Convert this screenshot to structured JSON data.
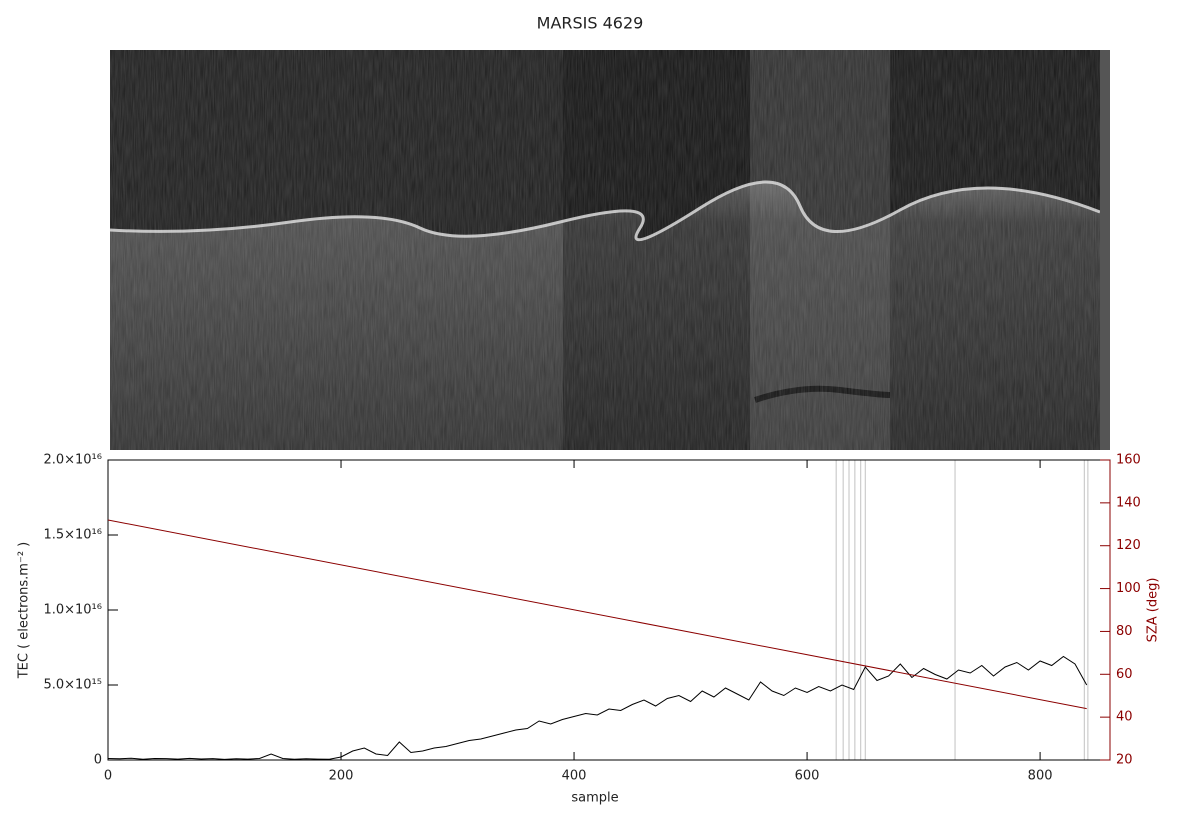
{
  "chart_data": {
    "type": "line",
    "title": "MARSIS 4629",
    "xlabel": "sample",
    "ylabel": "TEC ( electrons.m⁻² )",
    "y2label": "SZA (deg)",
    "xlim": [
      0,
      860
    ],
    "xticks": [
      0,
      200,
      400,
      600,
      800
    ],
    "ylim": [
      0,
      2e+16
    ],
    "yticks": [
      0,
      {
        "value": 5000000000000000.0,
        "label": "5.0×10¹⁵"
      },
      {
        "value": 1e+16,
        "label": "1.0×10¹⁶"
      },
      {
        "value": 1.5e+16,
        "label": "1.5×10¹⁶"
      },
      {
        "value": 2e+16,
        "label": "2.0×10¹⁶"
      }
    ],
    "y2lim": [
      20,
      160
    ],
    "y2ticks": [
      20,
      40,
      60,
      80,
      100,
      120,
      140,
      160
    ],
    "y2color": "#8b0000",
    "flagged_samples": [
      625,
      631,
      636,
      641,
      646,
      650,
      727,
      838,
      841
    ],
    "flag_color": "#cccccc",
    "series": [
      {
        "name": "TEC",
        "color": "#000000",
        "x": [
          0,
          10,
          20,
          30,
          40,
          50,
          60,
          70,
          80,
          90,
          100,
          110,
          120,
          130,
          140,
          150,
          160,
          170,
          180,
          190,
          200,
          210,
          220,
          230,
          240,
          250,
          260,
          270,
          280,
          290,
          300,
          310,
          320,
          330,
          340,
          350,
          360,
          370,
          380,
          390,
          400,
          410,
          420,
          430,
          440,
          450,
          460,
          470,
          480,
          490,
          500,
          510,
          520,
          530,
          540,
          550,
          560,
          570,
          580,
          590,
          600,
          610,
          620,
          630,
          640,
          650,
          660,
          670,
          680,
          690,
          700,
          710,
          720,
          730,
          740,
          750,
          760,
          770,
          780,
          790,
          800,
          810,
          820,
          830,
          840
        ],
        "values": [
          100000000000000.0,
          80000000000000.0,
          120000000000000.0,
          50000000000000.0,
          100000000000000.0,
          90000000000000.0,
          60000000000000.0,
          110000000000000.0,
          70000000000000.0,
          90000000000000.0,
          40000000000000.0,
          80000000000000.0,
          60000000000000.0,
          100000000000000.0,
          400000000000000.0,
          100000000000000.0,
          50000000000000.0,
          80000000000000.0,
          60000000000000.0,
          50000000000000.0,
          200000000000000.0,
          600000000000000.0,
          800000000000000.0,
          400000000000000.0,
          300000000000000.0,
          1200000000000000.0,
          500000000000000.0,
          600000000000000.0,
          800000000000000.0,
          900000000000000.0,
          1100000000000000.0,
          1300000000000000.0,
          1400000000000000.0,
          1600000000000000.0,
          1800000000000000.0,
          2000000000000000.0,
          2100000000000000.0,
          2600000000000000.0,
          2400000000000000.0,
          2700000000000000.0,
          2900000000000000.0,
          3100000000000000.0,
          3000000000000000.0,
          3400000000000000.0,
          3300000000000000.0,
          3700000000000000.0,
          4000000000000000.0,
          3600000000000000.0,
          4100000000000000.0,
          4300000000000000.0,
          3900000000000000.0,
          4600000000000000.0,
          4200000000000000.0,
          4800000000000000.0,
          4400000000000000.0,
          4000000000000000.0,
          5200000000000000.0,
          4600000000000000.0,
          4300000000000000.0,
          4800000000000000.0,
          4500000000000000.0,
          4900000000000000.0,
          4600000000000000.0,
          5000000000000000.0,
          4700000000000000.0,
          6200000000000000.0,
          5300000000000000.0,
          5600000000000000.0,
          6400000000000000.0,
          5500000000000000.0,
          6100000000000000.0,
          5700000000000000.0,
          5400000000000000.0,
          6000000000000000.0,
          5800000000000000.0,
          6300000000000000.0,
          5600000000000000.0,
          6200000000000000.0,
          6500000000000000.0,
          6000000000000000.0,
          6600000000000000.0,
          6300000000000000.0,
          6900000000000000.0,
          6400000000000000.0,
          5000000000000000.0
        ]
      },
      {
        "name": "SZA",
        "color": "#8b0000",
        "axis": "y2",
        "x": [
          0,
          840
        ],
        "values": [
          132,
          44
        ]
      }
    ]
  }
}
